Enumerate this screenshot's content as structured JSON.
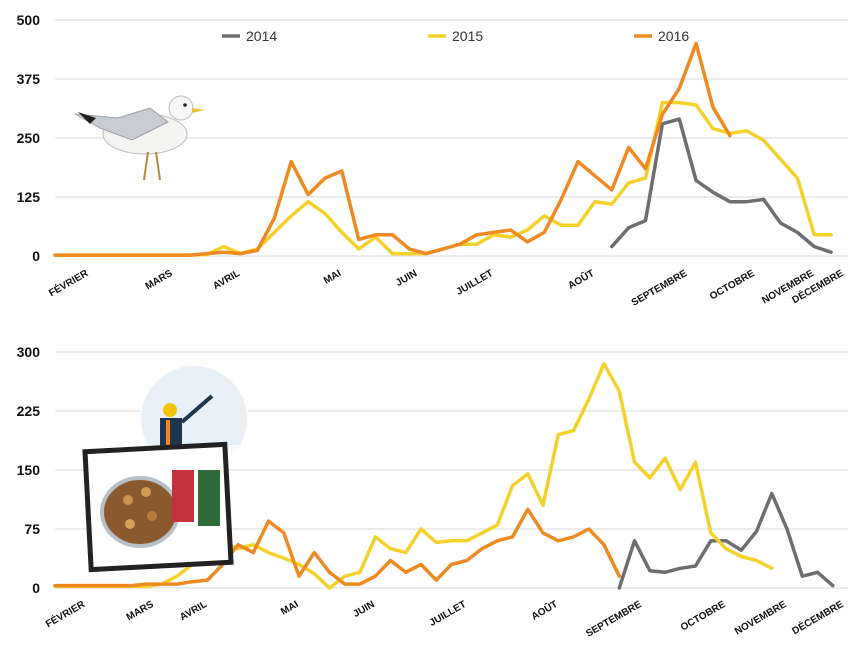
{
  "colors": {
    "2014": "#6e6e6e",
    "2015": "#f5d22b",
    "2016": "#ee8a22",
    "grid": "#d9d9d9"
  },
  "chart_data": [
    {
      "type": "line",
      "y_ticks": [
        "0",
        "125",
        "250",
        "375",
        "500"
      ],
      "ylim": [
        0,
        500
      ],
      "x_range": [
        0,
        47
      ],
      "month_labels": [
        {
          "label": "FÉVRIER",
          "x": 2
        },
        {
          "label": "MARS",
          "x": 7
        },
        {
          "label": "AVRIL",
          "x": 11
        },
        {
          "label": "MAI",
          "x": 17
        },
        {
          "label": "JUIN",
          "x": 21.5
        },
        {
          "label": "JUILLET",
          "x": 26
        },
        {
          "label": "AOÛT",
          "x": 32
        },
        {
          "label": "SEPTEMBRE",
          "x": 37.5
        },
        {
          "label": "OCTOBRE",
          "x": 41.5
        },
        {
          "label": "NOVEMBRE",
          "x": 45
        },
        {
          "label": "DÉCEMBRE",
          "x": 49
        }
      ],
      "legend": [
        "2014",
        "2015",
        "2016"
      ],
      "series": [
        {
          "name": "2014",
          "color_key": "2014",
          "x_start": 33,
          "values": [
            20,
            60,
            75,
            280,
            290,
            160,
            135,
            115,
            115,
            120,
            70,
            50,
            20,
            8
          ]
        },
        {
          "name": "2015",
          "color_key": "2015",
          "x_start": 0,
          "values": [
            2,
            2,
            2,
            2,
            2,
            2,
            2,
            2,
            2,
            3,
            20,
            5,
            15,
            50,
            85,
            115,
            90,
            50,
            15,
            40,
            5,
            5,
            5,
            15,
            25,
            25,
            45,
            40,
            55,
            85,
            65,
            65,
            115,
            110,
            155,
            165,
            325,
            325,
            320,
            270,
            260,
            265,
            245,
            205,
            165,
            45,
            45
          ]
        },
        {
          "name": "2016",
          "color_key": "2016",
          "x_start": 0,
          "values": [
            2,
            2,
            2,
            2,
            2,
            2,
            2,
            2,
            2,
            5,
            8,
            5,
            12,
            80,
            200,
            130,
            165,
            180,
            35,
            45,
            45,
            15,
            5,
            15,
            25,
            45,
            50,
            55,
            30,
            50,
            120,
            200,
            170,
            140,
            230,
            185,
            300,
            355,
            450,
            315,
            255
          ]
        }
      ]
    },
    {
      "type": "line",
      "y_ticks": [
        "0",
        "75",
        "150",
        "225",
        "300"
      ],
      "ylim": [
        0,
        300
      ],
      "x_range": [
        0,
        52
      ],
      "month_labels": [
        {
          "label": "FÉVRIER",
          "x": 2
        },
        {
          "label": "MARS",
          "x": 6.5
        },
        {
          "label": "AVRIL",
          "x": 10
        },
        {
          "label": "MAI",
          "x": 16
        },
        {
          "label": "JUIN",
          "x": 21
        },
        {
          "label": "JUILLET",
          "x": 27
        },
        {
          "label": "AOÛT",
          "x": 33
        },
        {
          "label": "SEPTEMBRE",
          "x": 38.5
        },
        {
          "label": "OCTOBRE",
          "x": 44
        },
        {
          "label": "NOVEMBRE",
          "x": 48
        },
        {
          "label": "DÉCEMBRE",
          "x": 52
        }
      ],
      "series": [
        {
          "name": "2014",
          "color_key": "2014",
          "x_start": 37,
          "values": [
            0,
            60,
            22,
            20,
            25,
            28,
            60,
            60,
            48,
            72,
            120,
            75,
            15,
            20,
            3
          ]
        },
        {
          "name": "2015",
          "color_key": "2015",
          "x_start": 0,
          "values": [
            2,
            2,
            2,
            2,
            2,
            2,
            2,
            5,
            15,
            30,
            40,
            58,
            50,
            55,
            45,
            38,
            30,
            18,
            0,
            15,
            20,
            65,
            50,
            45,
            75,
            58,
            60,
            60,
            70,
            80,
            130,
            145,
            105,
            195,
            200,
            240,
            285,
            250,
            160,
            140,
            165,
            125,
            160,
            70,
            50,
            40,
            35,
            25
          ]
        },
        {
          "name": "2016",
          "color_key": "2016",
          "x_start": 0,
          "values": [
            3,
            3,
            3,
            3,
            3,
            3,
            5,
            5,
            5,
            8,
            10,
            30,
            55,
            45,
            85,
            70,
            15,
            45,
            20,
            5,
            5,
            15,
            35,
            20,
            30,
            10,
            30,
            35,
            50,
            60,
            65,
            100,
            70,
            60,
            65,
            75,
            55,
            15
          ]
        }
      ]
    }
  ]
}
